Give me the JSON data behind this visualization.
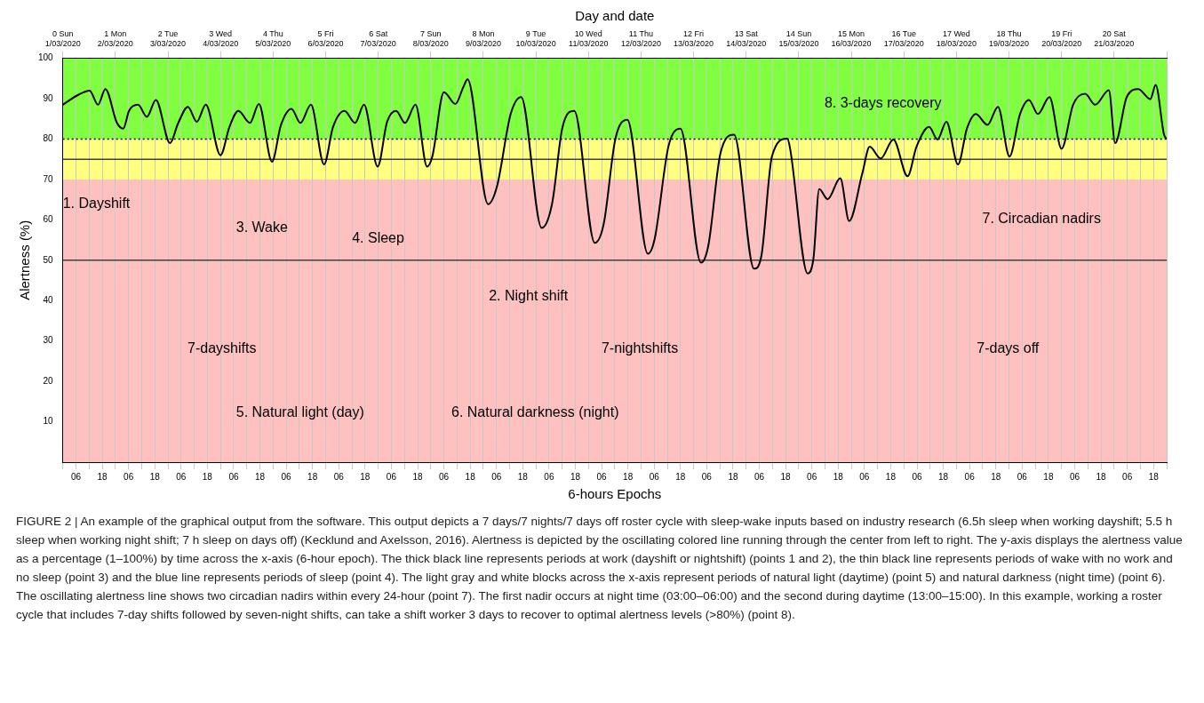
{
  "chart_data": {
    "type": "line",
    "xlabel": "6-hours Epochs",
    "x2label": "Day and date",
    "ylabel": "Alertness (%)",
    "xlim": [
      "2020-03-01T00:00",
      "2020-03-22T00:00"
    ],
    "ylim": [
      0,
      100
    ],
    "x2lim": [
      "2020-03-01T00:00",
      "2020-03-22T00:00"
    ],
    "yticks": [
      10,
      20,
      30,
      40,
      50,
      60,
      70,
      80,
      90,
      100
    ],
    "xticks": [
      {
        "value": "2020-03-01T00:00",
        "label": null
      },
      {
        "value": "2020-03-01T06:00",
        "label": "06"
      },
      {
        "value": "2020-03-01T12:00",
        "label": null
      },
      {
        "value": "2020-03-01T18:00",
        "label": "18"
      },
      {
        "value": "2020-03-02T00:00",
        "label": null
      },
      {
        "value": "2020-03-02T06:00",
        "label": "06"
      },
      {
        "value": "2020-03-02T12:00",
        "label": null
      },
      {
        "value": "2020-03-02T18:00",
        "label": "18"
      },
      {
        "value": "2020-03-03T00:00",
        "label": null
      },
      {
        "value": "2020-03-03T06:00",
        "label": "06"
      },
      {
        "value": "2020-03-03T12:00",
        "label": null
      },
      {
        "value": "2020-03-03T18:00",
        "label": "18"
      },
      {
        "value": "2020-03-04T00:00",
        "label": null
      },
      {
        "value": "2020-03-04T06:00",
        "label": "06"
      },
      {
        "value": "2020-03-04T12:00",
        "label": null
      },
      {
        "value": "2020-03-04T18:00",
        "label": "18"
      },
      {
        "value": "2020-03-05T00:00",
        "label": null
      },
      {
        "value": "2020-03-05T06:00",
        "label": "06"
      },
      {
        "value": "2020-03-05T12:00",
        "label": null
      },
      {
        "value": "2020-03-05T18:00",
        "label": "18"
      },
      {
        "value": "2020-03-06T00:00",
        "label": null
      },
      {
        "value": "2020-03-06T06:00",
        "label": "06"
      },
      {
        "value": "2020-03-06T12:00",
        "label": null
      },
      {
        "value": "2020-03-06T18:00",
        "label": "18"
      },
      {
        "value": "2020-03-07T00:00",
        "label": null
      },
      {
        "value": "2020-03-07T06:00",
        "label": "06"
      },
      {
        "value": "2020-03-07T12:00",
        "label": null
      },
      {
        "value": "2020-03-07T18:00",
        "label": "18"
      },
      {
        "value": "2020-03-08T00:00",
        "label": null
      },
      {
        "value": "2020-03-08T06:00",
        "label": "06"
      },
      {
        "value": "2020-03-08T12:00",
        "label": null
      },
      {
        "value": "2020-03-08T18:00",
        "label": "18"
      },
      {
        "value": "2020-03-09T00:00",
        "label": null
      },
      {
        "value": "2020-03-09T06:00",
        "label": "06"
      },
      {
        "value": "2020-03-09T12:00",
        "label": null
      },
      {
        "value": "2020-03-09T18:00",
        "label": "18"
      },
      {
        "value": "2020-03-10T00:00",
        "label": null
      },
      {
        "value": "2020-03-10T06:00",
        "label": "06"
      },
      {
        "value": "2020-03-10T12:00",
        "label": null
      },
      {
        "value": "2020-03-10T18:00",
        "label": "18"
      },
      {
        "value": "2020-03-11T00:00",
        "label": null
      },
      {
        "value": "2020-03-11T06:00",
        "label": "06"
      },
      {
        "value": "2020-03-11T12:00",
        "label": null
      },
      {
        "value": "2020-03-11T18:00",
        "label": "18"
      },
      {
        "value": "2020-03-12T00:00",
        "label": null
      },
      {
        "value": "2020-03-12T06:00",
        "label": "06"
      },
      {
        "value": "2020-03-12T12:00",
        "label": null
      },
      {
        "value": "2020-03-12T18:00",
        "label": "18"
      },
      {
        "value": "2020-03-13T00:00",
        "label": null
      },
      {
        "value": "2020-03-13T06:00",
        "label": "06"
      },
      {
        "value": "2020-03-13T12:00",
        "label": null
      },
      {
        "value": "2020-03-13T18:00",
        "label": "18"
      },
      {
        "value": "2020-03-14T00:00",
        "label": null
      },
      {
        "value": "2020-03-14T06:00",
        "label": "06"
      },
      {
        "value": "2020-03-14T12:00",
        "label": null
      },
      {
        "value": "2020-03-14T18:00",
        "label": "18"
      },
      {
        "value": "2020-03-15T00:00",
        "label": null
      },
      {
        "value": "2020-03-15T06:00",
        "label": "06"
      },
      {
        "value": "2020-03-15T12:00",
        "label": null
      },
      {
        "value": "2020-03-15T18:00",
        "label": "18"
      },
      {
        "value": "2020-03-16T00:00",
        "label": null
      },
      {
        "value": "2020-03-16T06:00",
        "label": "06"
      },
      {
        "value": "2020-03-16T12:00",
        "label": null
      },
      {
        "value": "2020-03-16T18:00",
        "label": "18"
      },
      {
        "value": "2020-03-17T00:00",
        "label": null
      },
      {
        "value": "2020-03-17T06:00",
        "label": "06"
      },
      {
        "value": "2020-03-17T12:00",
        "label": null
      },
      {
        "value": "2020-03-17T18:00",
        "label": "18"
      },
      {
        "value": "2020-03-18T00:00",
        "label": null
      },
      {
        "value": "2020-03-18T06:00",
        "label": "06"
      },
      {
        "value": "2020-03-18T12:00",
        "label": null
      },
      {
        "value": "2020-03-18T18:00",
        "label": "18"
      },
      {
        "value": "2020-03-19T00:00",
        "label": null
      },
      {
        "value": "2020-03-19T06:00",
        "label": "06"
      },
      {
        "value": "2020-03-19T12:00",
        "label": null
      },
      {
        "value": "2020-03-19T18:00",
        "label": "18"
      },
      {
        "value": "2020-03-20T00:00",
        "label": null
      },
      {
        "value": "2020-03-20T06:00",
        "label": "06"
      },
      {
        "value": "2020-03-20T12:00",
        "label": null
      },
      {
        "value": "2020-03-20T18:00",
        "label": "18"
      },
      {
        "value": "2020-03-21T00:00",
        "label": null
      },
      {
        "value": "2020-03-21T06:00",
        "label": "06"
      },
      {
        "value": "2020-03-21T12:00",
        "label": null
      },
      {
        "value": "2020-03-21T18:00",
        "label": "18"
      },
      {
        "value": "2020-03-22T00:00",
        "label": null
      }
    ],
    "x2ticks": [
      {
        "value": "2020-03-01T00:00",
        "label": "0 Sun 1/03/2020"
      },
      {
        "value": "2020-03-02T00:00",
        "label": "1 Mon 2/03/2020"
      },
      {
        "value": "2020-03-03T00:00",
        "label": "2 Tue 3/03/2020"
      },
      {
        "value": "2020-03-04T00:00",
        "label": "3 Wed 4/03/2020"
      },
      {
        "value": "2020-03-05T00:00",
        "label": "4 Thu 5/03/2020"
      },
      {
        "value": "2020-03-06T00:00",
        "label": "5 Fri 6/03/2020"
      },
      {
        "value": "2020-03-07T00:00",
        "label": "6 Sat 7/03/2020"
      },
      {
        "value": "2020-03-08T00:00",
        "label": "7 Sun 8/03/2020"
      },
      {
        "value": "2020-03-09T00:00",
        "label": "8 Mon 9/03/2020"
      },
      {
        "value": "2020-03-10T00:00",
        "label": "9 Tue 10/03/2020"
      },
      {
        "value": "2020-03-11T00:00",
        "label": "10 Wed 11/03/2020"
      },
      {
        "value": "2020-03-12T00:00",
        "label": "11 Thu 12/03/2020"
      },
      {
        "value": "2020-03-13T00:00",
        "label": "12 Fri 13/03/2020"
      },
      {
        "value": "2020-03-14T00:00",
        "label": "13 Sat 14/03/2020"
      },
      {
        "value": "2020-03-15T00:00",
        "label": "14 Sun 15/03/2020"
      },
      {
        "value": "2020-03-16T00:00",
        "label": "15 Mon 16/03/2020"
      },
      {
        "value": "2020-03-17T00:00",
        "label": "16 Tue 17/03/2020"
      },
      {
        "value": "2020-03-18T00:00",
        "label": "17 Wed 18/03/2020"
      },
      {
        "value": "2020-03-19T00:00",
        "label": "18 Thu 19/03/2020"
      },
      {
        "value": "2020-03-20T00:00",
        "label": "19 Fri 20/03/2020"
      },
      {
        "value": "2020-03-21T00:00",
        "label": "20 Sat 21/03/2020"
      },
      {
        "value": "2020-03-22T00:00",
        "label": null
      }
    ],
    "grid": "x",
    "legend": false,
    "marker": "none",
    "line_style": "solid",
    "series": [
      {
        "color": "#000000",
        "x": [
          "2020-03-01T00:00",
          "2020-03-01T07:12",
          "2020-03-01T12:14",
          "2020-03-01T16:05",
          "2020-03-01T19:26",
          "2020-03-02T00:43",
          "2020-03-02T03:36",
          "2020-03-02T06:14",
          "2020-03-02T10:19",
          "2020-03-02T14:24",
          "2020-03-02T18:29",
          "2020-03-03T00:58",
          "2020-03-03T04:34",
          "2020-03-03T09:07",
          "2020-03-03T13:12",
          "2020-03-03T17:17",
          "2020-03-04T00:00",
          "2020-03-04T04:05",
          "2020-03-04T08:10",
          "2020-03-04T13:26",
          "2020-03-04T17:31",
          "2020-03-04T23:31",
          "2020-03-05T03:36",
          "2020-03-05T08:24",
          "2020-03-05T12:29",
          "2020-03-05T17:17",
          "2020-03-05T23:17",
          "2020-03-06T03:22",
          "2020-03-06T08:38",
          "2020-03-06T13:26",
          "2020-03-06T17:31",
          "2020-03-06T23:46",
          "2020-03-07T04:05",
          "2020-03-07T08:10",
          "2020-03-07T12:14",
          "2020-03-07T17:02",
          "2020-03-07T22:19",
          "2020-03-08T00:43",
          "2020-03-08T06:00",
          "2020-03-08T11:17",
          "2020-03-08T14:53",
          "2020-03-08T16:48",
          "2020-03-09T02:10",
          "2020-03-09T06:14",
          "2020-03-09T12:29",
          "2020-03-09T17:17",
          "2020-03-10T02:38",
          "2020-03-10T07:26",
          "2020-03-10T12:00",
          "2020-03-10T17:31",
          "2020-03-11T02:53",
          "2020-03-11T06:58",
          "2020-03-11T12:14",
          "2020-03-11T17:46",
          "2020-03-12T03:07",
          "2020-03-12T06:14",
          "2020-03-12T12:29",
          "2020-03-12T18:00",
          "2020-03-13T03:22",
          "2020-03-13T06:43",
          "2020-03-13T12:14",
          "2020-03-13T18:29",
          "2020-03-14T03:36",
          "2020-03-14T06:58",
          "2020-03-14T11:46",
          "2020-03-14T18:43",
          "2020-03-14T19:55",
          "2020-03-15T04:05",
          "2020-03-15T06:43",
          "2020-03-15T09:22",
          "2020-03-15T13:12",
          "2020-03-15T18:58",
          "2020-03-15T23:02",
          "2020-03-16T05:02",
          "2020-03-16T08:24",
          "2020-03-16T13:26",
          "2020-03-16T19:12",
          "2020-03-17T01:41",
          "2020-03-17T05:46",
          "2020-03-17T11:31",
          "2020-03-17T15:22",
          "2020-03-17T19:26",
          "2020-03-18T00:43",
          "2020-03-18T04:48",
          "2020-03-18T08:53",
          "2020-03-18T14:10",
          "2020-03-18T18:58",
          "2020-03-19T00:14",
          "2020-03-19T05:02",
          "2020-03-19T09:07",
          "2020-03-19T13:12",
          "2020-03-19T18:29",
          "2020-03-20T00:00",
          "2020-03-20T05:17",
          "2020-03-20T10:48",
          "2020-03-20T15:19",
          "2020-03-20T21:36",
          "2020-03-21T00:29",
          "2020-03-21T05:46",
          "2020-03-21T11:02",
          "2020-03-21T16:34",
          "2020-03-21T18:58",
          "2020-03-21T22:48",
          "2020-03-22T00:00"
        ],
        "values": [
          88.5,
          91,
          92,
          88.5,
          92.4,
          84,
          82.6,
          87,
          88.5,
          85.5,
          89.7,
          79,
          83.8,
          88,
          84.3,
          88.5,
          76,
          83,
          87,
          84,
          88.7,
          74.4,
          83.5,
          87.5,
          84,
          88.5,
          73.7,
          83,
          87,
          84,
          88.5,
          73.2,
          84.3,
          87,
          84,
          88.5,
          73.2,
          75.7,
          91.6,
          88.7,
          92.9,
          94.8,
          63.9,
          68.3,
          86.2,
          90.4,
          58,
          64.1,
          82.6,
          87,
          54.3,
          59,
          79.9,
          84.8,
          51.6,
          55.3,
          78.1,
          82.6,
          49.4,
          53.6,
          76.4,
          81.1,
          47.9,
          51.1,
          75.7,
          80.1,
          78.1,
          46.7,
          50.4,
          67.6,
          65.1,
          70.3,
          59.7,
          71.5,
          78.1,
          75.2,
          79.9,
          70.8,
          78.1,
          83,
          79.9,
          84.3,
          73.7,
          82.6,
          86.2,
          83.5,
          88,
          75.7,
          86.2,
          89.7,
          86.2,
          90.4,
          77.6,
          88.5,
          91.2,
          88.5,
          92.1,
          79,
          90.4,
          92.4,
          89.9,
          93.4,
          81.1,
          80
        ]
      }
    ],
    "bands": [
      {
        "axis": "y",
        "from": 80,
        "to": 100,
        "color": "#80ff40"
      },
      {
        "axis": "y",
        "from": 70,
        "to": 80,
        "color": "#ffff80"
      },
      {
        "axis": "y",
        "from": 0,
        "to": 70,
        "color": "#ffc0c0"
      }
    ],
    "ref_lines": [
      {
        "axis": "y",
        "value": 80,
        "line_style": "dotted",
        "color": "#000000"
      },
      {
        "axis": "y",
        "value": 75,
        "line_style": "solid",
        "color": "#404040"
      },
      {
        "axis": "y",
        "value": 50,
        "line_style": "solid",
        "color": "#404040"
      }
    ],
    "annotations": [
      "1. Dayshift",
      "3. Wake",
      "4. Sleep",
      "2. Night shift",
      "8. 3-days recovery",
      "7. Circadian nadirs",
      "7-dayshifts",
      "7-nightshifts",
      "7-days off",
      "5. Natural light (day)",
      "6. Natural darkness (night)",
      "FIGURE 2 | An example of the graphical output from the software. This output depicts a 7 days/7 nights/7 days off roster cycle with sleep-wake inputs based on industry research (6.5h sleep when working dayshift; 5.5 h sleep when working night shift; 7 h sleep on days off) (Kecklund and Axelsson, 2016). Alertness is depicted by the oscillating colored line running through the center from left to right. The y-axis displays the alertness value as a percentage (1–100%) by time across the x-axis (6-hour epoch). The thick black line represents periods at work (dayshift or nightshift) (points 1 and 2), the thin black line represents periods of wake with no work and no sleep (point 3) and the blue line represents periods of sleep (point 4). The light gray and white blocks across the x-axis represent periods of natural light (daytime) (point 5) and natural darkness (night time) (point 6). The oscillating alertness line shows two circadian nadirs within every 24-hour (point 7). The first nadir occurs at night time (03:00–06:00) and the second during daytime (13:00–15:00). In this example, working a roster cycle that includes 7-day shifts followed by seven-night shifts, can take a shift worker 3 days to recover to optimal alertness levels (>80%) (point 8)."
    ]
  }
}
